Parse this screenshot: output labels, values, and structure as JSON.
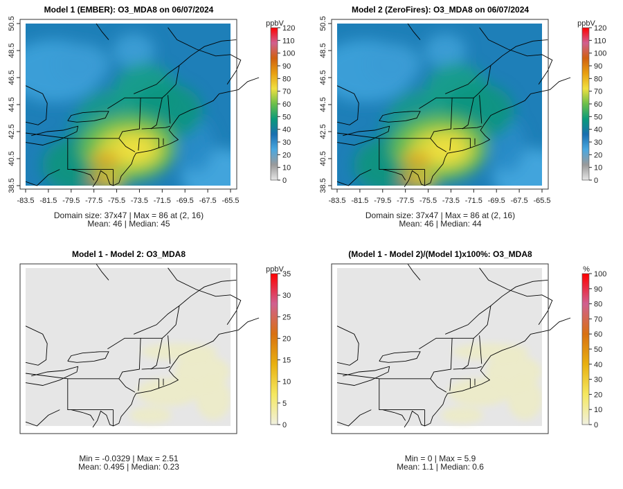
{
  "panels": [
    {
      "title": "Model 1 (EMBER): O3_MDA8 on 06/07/2024",
      "unit": "ppbV",
      "stat_line1": "Domain size: 37x47 | Max = 86 at (2, 16)",
      "stat_line2": "Mean: 46 |  Median: 45",
      "colorbar_ticks": [
        "0",
        "10",
        "20",
        "30",
        "40",
        "50",
        "60",
        "70",
        "80",
        "90",
        "100",
        "110",
        "120"
      ],
      "show_axes": true,
      "field": "ozone"
    },
    {
      "title": "Model 2 (ZeroFires): O3_MDA8 on 06/07/2024",
      "unit": "ppbV",
      "stat_line1": "Domain size: 37x47 | Max = 86 at (2, 16)",
      "stat_line2": "Mean: 46 |  Median: 44",
      "colorbar_ticks": [
        "0",
        "10",
        "20",
        "30",
        "40",
        "50",
        "60",
        "70",
        "80",
        "90",
        "100",
        "110",
        "120"
      ],
      "show_axes": true,
      "field": "ozone"
    },
    {
      "title": "Model 1 - Model 2: O3_MDA8",
      "unit": "ppbV",
      "stat_line1": "Min = -0.0329 | Max = 2.51",
      "stat_line2": "Mean: 0.495 |  Median: 0.23",
      "colorbar_ticks": [
        "0",
        "5",
        "10",
        "15",
        "20",
        "25",
        "30",
        "35"
      ],
      "show_axes": false,
      "field": "diff"
    },
    {
      "title": "(Model 1 - Model 2)/(Model 1)x100%: O3_MDA8",
      "unit": "%",
      "stat_line1": "Min = 0 | Max = 5.9",
      "stat_line2": "Mean: 1.1 |  Median: 0.6",
      "colorbar_ticks": [
        "0",
        "10",
        "20",
        "30",
        "40",
        "50",
        "60",
        "70",
        "80",
        "90",
        "100"
      ],
      "show_axes": false,
      "field": "diff"
    }
  ],
  "x_ticks": [
    "-83.5",
    "-81.5",
    "-79.5",
    "-77.5",
    "-75.5",
    "-73.5",
    "-71.5",
    "-69.5",
    "-67.5",
    "-65.5"
  ],
  "y_ticks": [
    "38.5",
    "40.5",
    "42.5",
    "44.5",
    "46.5",
    "48.5",
    "50.5"
  ],
  "chart_data": [
    {
      "type": "heatmap",
      "title": "Model 1 (EMBER): O3_MDA8 on 06/07/2024",
      "xlabel": "",
      "ylabel": "",
      "xlim": [
        -83.5,
        -65.5
      ],
      "ylim": [
        38.5,
        50.5
      ],
      "legend": "ppbV",
      "zlim": [
        0,
        120
      ],
      "max": 86,
      "mean": 46,
      "median": 45,
      "domain": "37x47"
    },
    {
      "type": "heatmap",
      "title": "Model 2 (ZeroFires): O3_MDA8 on 06/07/2024",
      "xlim": [
        -83.5,
        -65.5
      ],
      "ylim": [
        38.5,
        50.5
      ],
      "legend": "ppbV",
      "zlim": [
        0,
        120
      ],
      "max": 86,
      "mean": 46,
      "median": 44,
      "domain": "37x47"
    },
    {
      "type": "heatmap",
      "title": "Model 1 - Model 2: O3_MDA8",
      "legend": "ppbV",
      "zlim": [
        0,
        35
      ],
      "min": -0.0329,
      "max": 2.51,
      "mean": 0.495,
      "median": 0.23
    },
    {
      "type": "heatmap",
      "title": "(Model 1 - Model 2)/(Model 1)x100%: O3_MDA8",
      "legend": "%",
      "zlim": [
        0,
        100
      ],
      "min": 0,
      "max": 5.9,
      "mean": 1.1,
      "median": 0.6
    }
  ],
  "colors": {
    "ozone_scale": [
      "#e6e6e6",
      "#9a9a9a",
      "#4aa8e0",
      "#1a6fb0",
      "#0a9a7a",
      "#6cbf4a",
      "#f0e040",
      "#e8a010",
      "#d06010",
      "#d06090",
      "#ff0000"
    ],
    "diff_scale": [
      "#f0f0e0",
      "#f5e860",
      "#e8b010",
      "#d87010",
      "#d06090",
      "#ff0000"
    ]
  }
}
